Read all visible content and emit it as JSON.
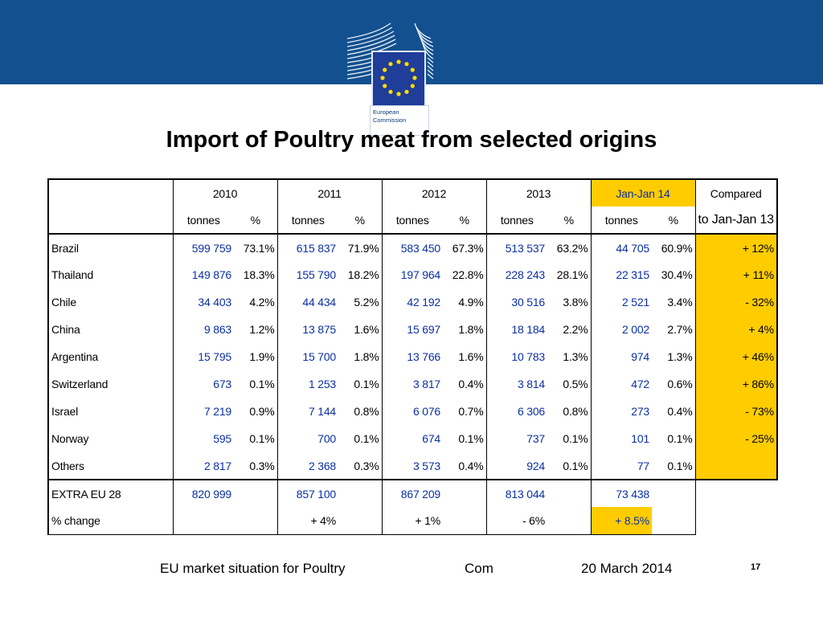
{
  "header": {
    "logo_line1": "European",
    "logo_line2": "Commission",
    "colors": {
      "band": "#12508f",
      "highlight": "#ffcc00",
      "value_blue": "#0b2fa3"
    }
  },
  "title": "Import of Poultry meat from selected origins",
  "table": {
    "years": [
      "2010",
      "2011",
      "2012",
      "2013",
      "Jan-Jan 14"
    ],
    "compared_line1": "Compared",
    "compared_line2": "to Jan-Jan 13",
    "unit_tonnes": "tonnes",
    "unit_percent": "%",
    "rows": [
      {
        "name": "Brazil",
        "t2010": "599 759",
        "p2010": "73.1%",
        "t2011": "615 837",
        "p2011": "71.9%",
        "t2012": "583 450",
        "p2012": "67.3%",
        "t2013": "513 537",
        "p2013": "63.2%",
        "tjan": "44 705",
        "pjan": "60.9%",
        "cmp": "+ 12%"
      },
      {
        "name": "Thailand",
        "t2010": "149 876",
        "p2010": "18.3%",
        "t2011": "155 790",
        "p2011": "18.2%",
        "t2012": "197 964",
        "p2012": "22.8%",
        "t2013": "228 243",
        "p2013": "28.1%",
        "tjan": "22 315",
        "pjan": "30.4%",
        "cmp": "+ 11%"
      },
      {
        "name": "Chile",
        "t2010": "34 403",
        "p2010": "4.2%",
        "t2011": "44 434",
        "p2011": "5.2%",
        "t2012": "42 192",
        "p2012": "4.9%",
        "t2013": "30 516",
        "p2013": "3.8%",
        "tjan": "2 521",
        "pjan": "3.4%",
        "cmp": "- 32%"
      },
      {
        "name": "China",
        "t2010": "9 863",
        "p2010": "1.2%",
        "t2011": "13 875",
        "p2011": "1.6%",
        "t2012": "15 697",
        "p2012": "1.8%",
        "t2013": "18 184",
        "p2013": "2.2%",
        "tjan": "2 002",
        "pjan": "2.7%",
        "cmp": "+ 4%"
      },
      {
        "name": "Argentina",
        "t2010": "15 795",
        "p2010": "1.9%",
        "t2011": "15 700",
        "p2011": "1.8%",
        "t2012": "13 766",
        "p2012": "1.6%",
        "t2013": "10 783",
        "p2013": "1.3%",
        "tjan": "974",
        "pjan": "1.3%",
        "cmp": "+ 46%"
      },
      {
        "name": "Switzerland",
        "t2010": "673",
        "p2010": "0.1%",
        "t2011": "1 253",
        "p2011": "0.1%",
        "t2012": "3 817",
        "p2012": "0.4%",
        "t2013": "3 814",
        "p2013": "0.5%",
        "tjan": "472",
        "pjan": "0.6%",
        "cmp": "+ 86%"
      },
      {
        "name": "Israel",
        "t2010": "7 219",
        "p2010": "0.9%",
        "t2011": "7 144",
        "p2011": "0.8%",
        "t2012": "6 076",
        "p2012": "0.7%",
        "t2013": "6 306",
        "p2013": "0.8%",
        "tjan": "273",
        "pjan": "0.4%",
        "cmp": "- 73%"
      },
      {
        "name": "Norway",
        "t2010": "595",
        "p2010": "0.1%",
        "t2011": "700",
        "p2011": "0.1%",
        "t2012": "674",
        "p2012": "0.1%",
        "t2013": "737",
        "p2013": "0.1%",
        "tjan": "101",
        "pjan": "0.1%",
        "cmp": "- 25%"
      },
      {
        "name": "Others",
        "t2010": "2 817",
        "p2010": "0.3%",
        "t2011": "2 368",
        "p2011": "0.3%",
        "t2012": "3 573",
        "p2012": "0.4%",
        "t2013": "924",
        "p2013": "0.1%",
        "tjan": "77",
        "pjan": "0.1%",
        "cmp": ""
      }
    ],
    "extra": {
      "name": "EXTRA EU 28",
      "t2010": "820 999",
      "t2011": "857 100",
      "t2012": "867 209",
      "t2013": "813 044",
      "tjan": "73 438"
    },
    "change": {
      "name": "% change",
      "c2011": "+ 4%",
      "c2012": "+ 1%",
      "c2013": "- 6%",
      "cjan": "+ 8.5%"
    }
  },
  "footer": {
    "left": "EU market situation for Poultry",
    "middle": "Com",
    "date": "20 March 2014",
    "page": "17"
  }
}
